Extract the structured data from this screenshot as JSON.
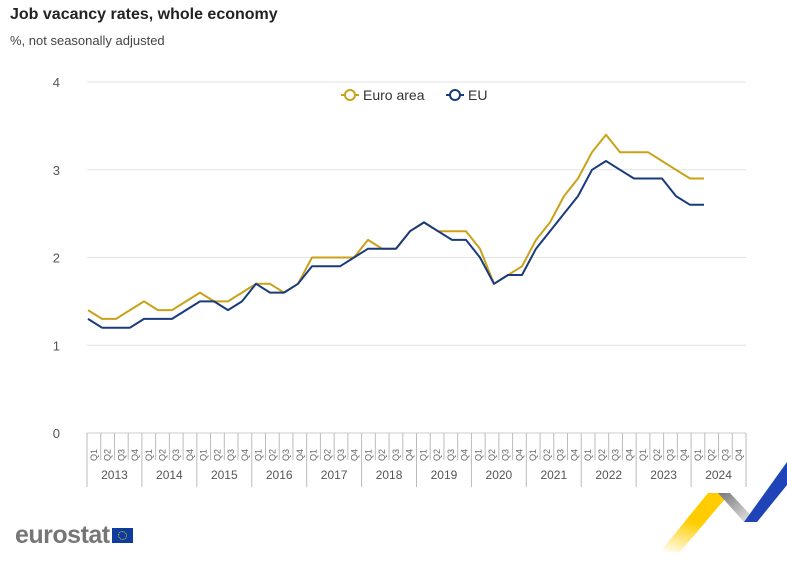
{
  "chart_data": {
    "type": "line",
    "title": "Job vacancy rates, whole economy",
    "subtitle": "%, not  seasonally adjusted",
    "xlabel": "",
    "ylabel": "",
    "ylim": [
      0,
      4
    ],
    "yticks": [
      "0",
      "1",
      "2",
      "3",
      "4"
    ],
    "grid": true,
    "legend_position": "top-center",
    "years": [
      "2013",
      "2014",
      "2015",
      "2016",
      "2017",
      "2018",
      "2019",
      "2020",
      "2021",
      "2022",
      "2023",
      "2024"
    ],
    "quarters": [
      "Q1",
      "Q2",
      "Q3",
      "Q4"
    ],
    "series": [
      {
        "name": "Euro area",
        "color": "#c9a21a",
        "values": [
          1.4,
          1.3,
          1.3,
          1.4,
          1.5,
          1.4,
          1.4,
          1.5,
          1.6,
          1.5,
          1.5,
          1.6,
          1.7,
          1.7,
          1.6,
          1.7,
          2.0,
          2.0,
          2.0,
          2.0,
          2.2,
          2.1,
          2.1,
          2.3,
          2.4,
          2.3,
          2.3,
          2.3,
          2.1,
          1.7,
          1.8,
          1.9,
          2.2,
          2.4,
          2.7,
          2.9,
          3.2,
          3.4,
          3.2,
          3.2,
          3.2,
          3.1,
          3.0,
          2.9,
          2.9
        ]
      },
      {
        "name": "EU",
        "color": "#1a3a7e",
        "values": [
          1.3,
          1.2,
          1.2,
          1.2,
          1.3,
          1.3,
          1.3,
          1.4,
          1.5,
          1.5,
          1.4,
          1.5,
          1.7,
          1.6,
          1.6,
          1.7,
          1.9,
          1.9,
          1.9,
          2.0,
          2.1,
          2.1,
          2.1,
          2.3,
          2.4,
          2.3,
          2.2,
          2.2,
          2.0,
          1.7,
          1.8,
          1.8,
          2.1,
          2.3,
          2.5,
          2.7,
          3.0,
          3.1,
          3.0,
          2.9,
          2.9,
          2.9,
          2.7,
          2.6,
          2.6
        ]
      }
    ]
  },
  "branding": {
    "logo_text": "eurostat"
  }
}
